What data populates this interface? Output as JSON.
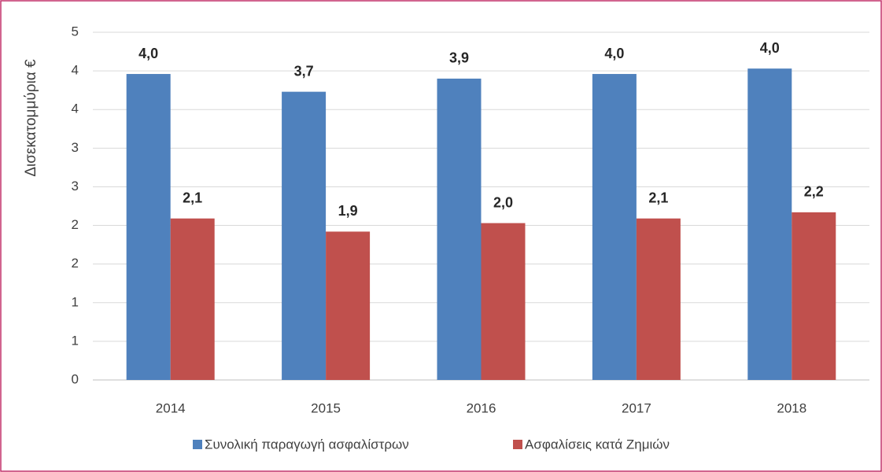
{
  "chart_data": {
    "type": "bar",
    "y_label": "Δισεκατομμύρια €",
    "categories": [
      "2014",
      "2015",
      "2016",
      "2017",
      "2018"
    ],
    "series": [
      {
        "name": "Συνολική παραγωγή ασφαλίστρων",
        "color": "#4f81bd",
        "values": [
          3.96,
          3.73,
          3.9,
          3.96,
          4.03
        ],
        "value_labels": [
          "4,0",
          "3,7",
          "3,9",
          "4,0",
          "4,0"
        ]
      },
      {
        "name": "Ασφαλίσεις κατά Ζημιών",
        "color": "#c0504d",
        "values": [
          2.09,
          1.92,
          2.03,
          2.09,
          2.17
        ],
        "value_labels": [
          "2,1",
          "1,9",
          "2,0",
          "2,1",
          "2,2"
        ]
      }
    ],
    "ylim": [
      0,
      4.5
    ],
    "yticks": [
      0,
      {
        "value": 0.5,
        "label": "1"
      },
      1,
      {
        "value": 1.5,
        "label": "2"
      },
      2,
      {
        "value": 2.5,
        "label": "3"
      },
      3,
      {
        "value": 3.5,
        "label": "4"
      },
      4,
      {
        "value": 4.5,
        "label": "5"
      }
    ],
    "grid": true,
    "legend": "bottom"
  }
}
